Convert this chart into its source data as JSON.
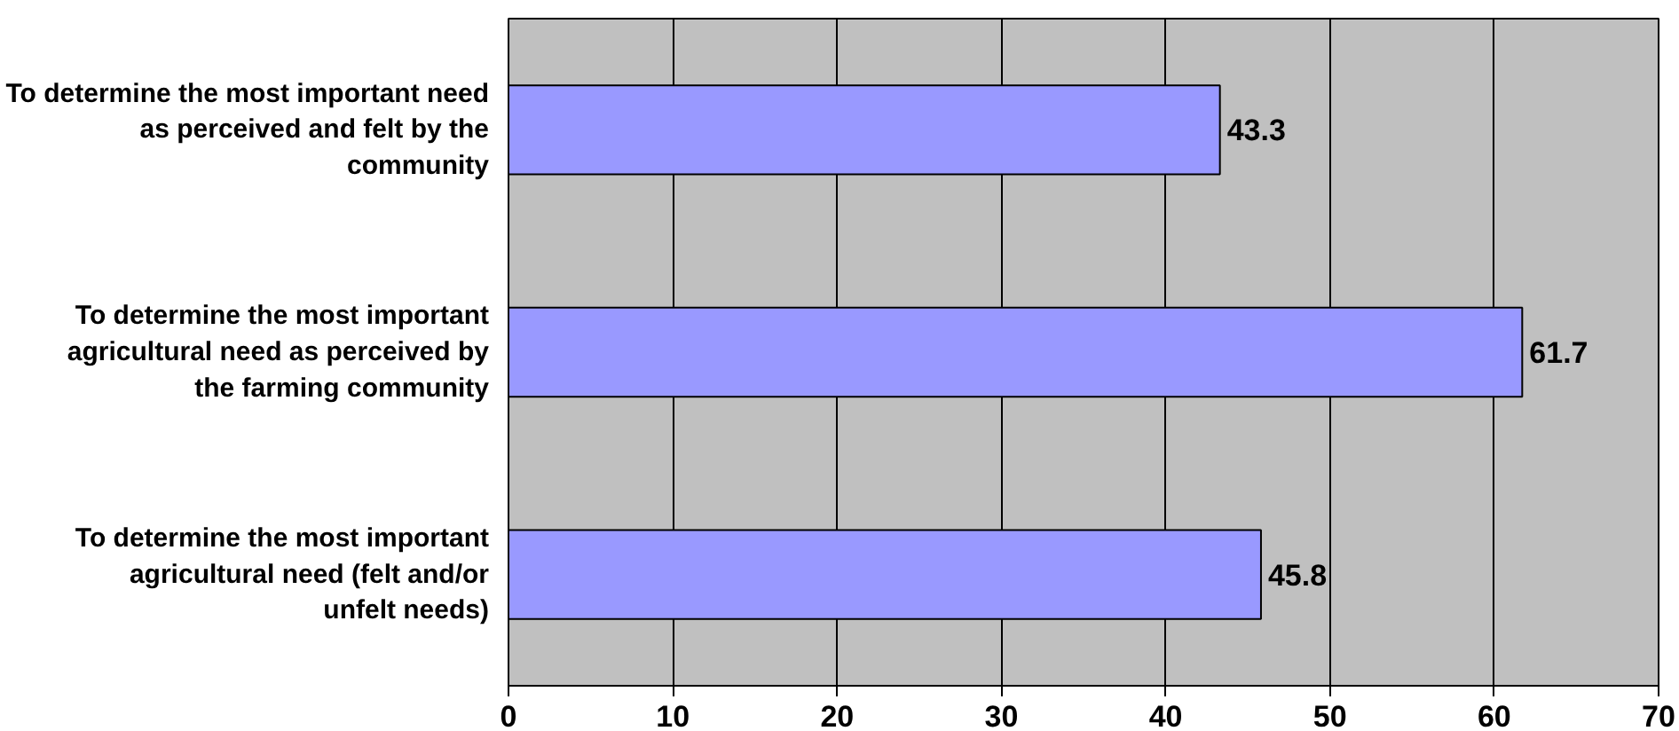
{
  "chart_data": {
    "type": "bar",
    "orientation": "horizontal",
    "categories": [
      "To determine the most important need as perceived and felt by the community",
      "To determine the most important agricultural need as perceived by the farming community",
      "To determine the most important agricultural need (felt and/or unfelt needs)"
    ],
    "values": [
      43.3,
      61.7,
      45.8
    ],
    "color": "#9999ff",
    "data_labels": true,
    "xlim": [
      0,
      70
    ],
    "xticks": [
      0,
      10,
      20,
      30,
      40,
      50,
      60,
      70
    ],
    "grid": "x"
  }
}
